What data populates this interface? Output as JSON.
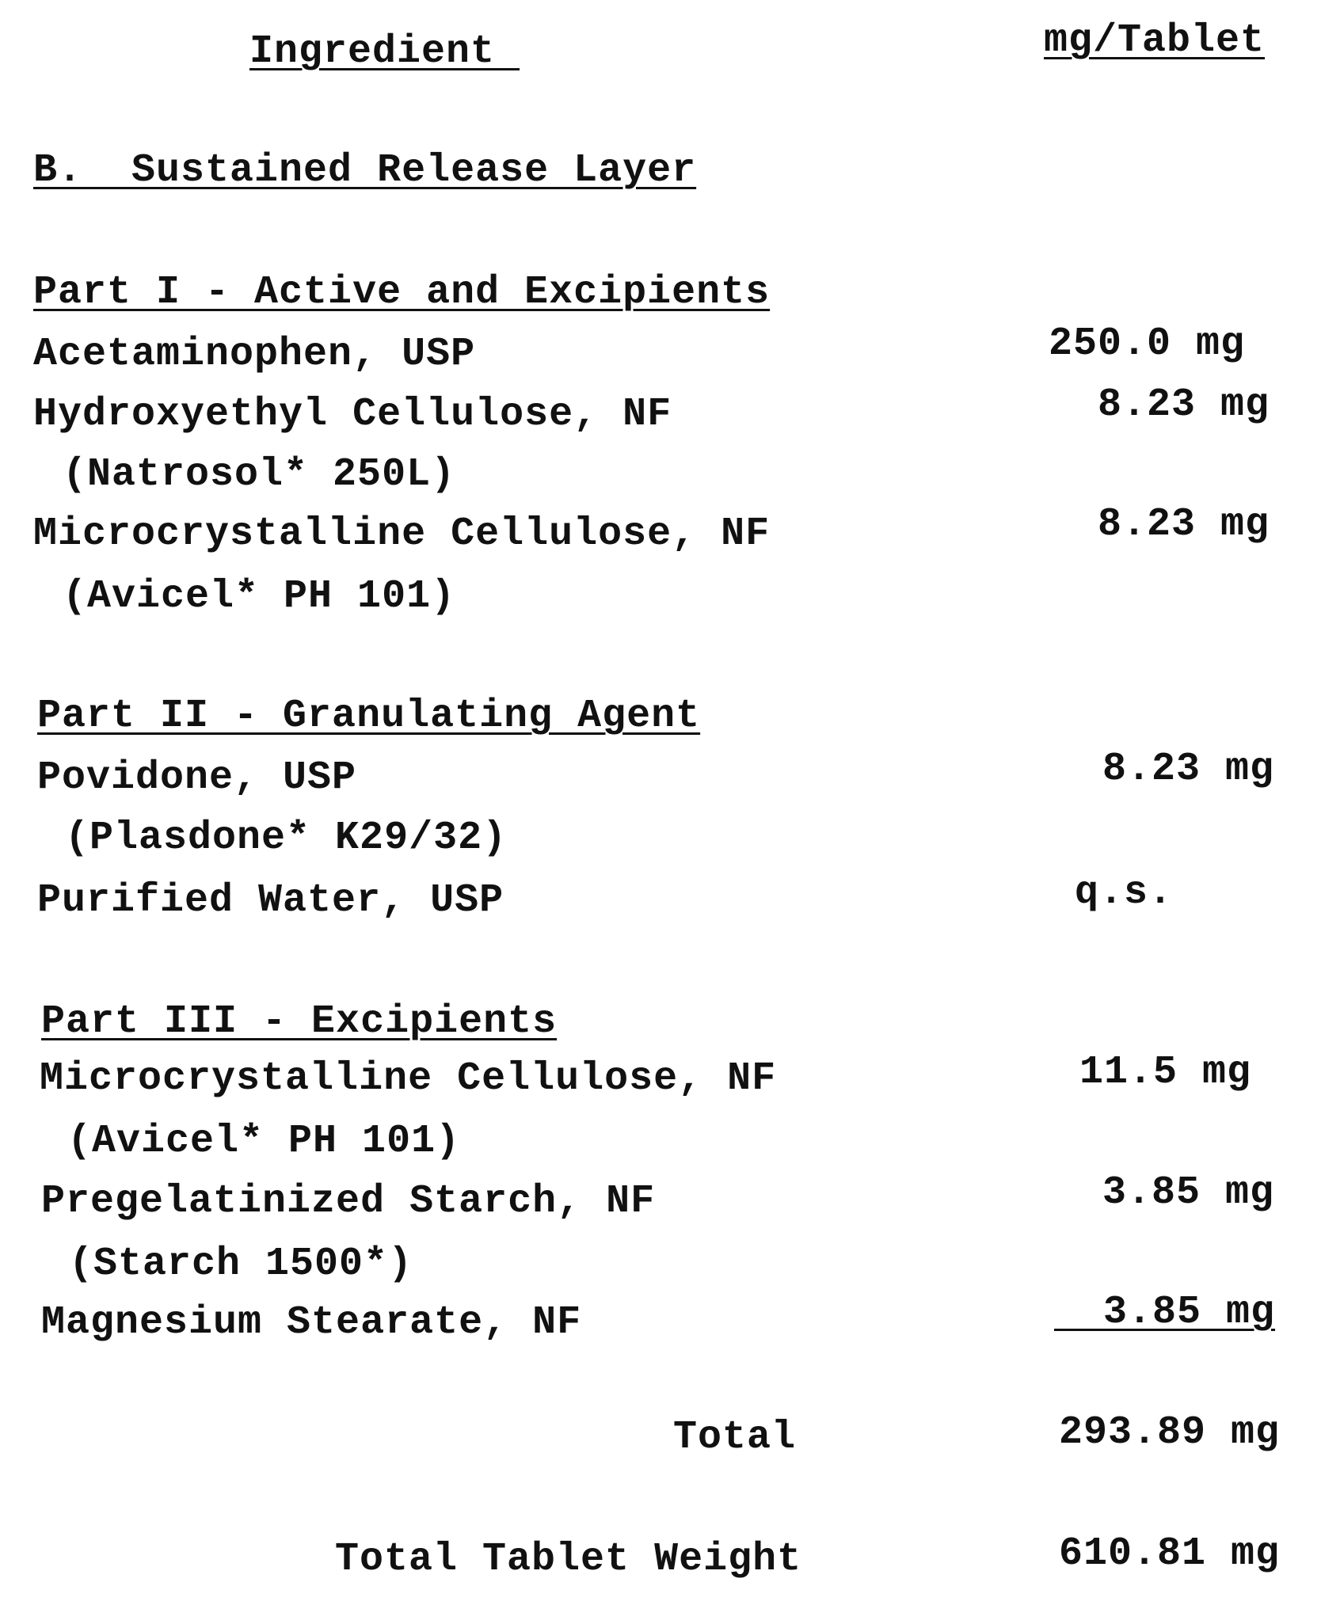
{
  "header": {
    "ingredient": "Ingredient ",
    "amount": "mg/Tablet"
  },
  "section_title": "B.  Sustained Release Layer",
  "parts": [
    {
      "title": "Part I - Active and Excipients",
      "items": [
        {
          "name": "Acetaminophen, USP",
          "amount": "250.0 mg"
        },
        {
          "name": "Hydroxyethyl Cellulose, NF",
          "sub": "(Natrosol* 250L)",
          "amount": "8.23 mg"
        },
        {
          "name": "Microcrystalline Cellulose, NF",
          "sub": "(Avicel* PH 101)",
          "amount": "8.23 mg"
        }
      ]
    },
    {
      "title": "Part II - Granulating Agent",
      "items": [
        {
          "name": "Povidone, USP",
          "sub": "(Plasdone* K29/32)",
          "amount": "8.23 mg"
        },
        {
          "name": "Purified Water, USP",
          "amount": "q.s."
        }
      ]
    },
    {
      "title": "Part III - Excipients",
      "items": [
        {
          "name": "Microcrystalline Cellulose, NF",
          "sub": "(Avicel* PH 101)",
          "amount": "11.5 mg"
        },
        {
          "name": "Pregelatinized Starch, NF",
          "sub": "(Starch 1500*)",
          "amount": "3.85 mg"
        },
        {
          "name": "Magnesium Stearate, NF",
          "amount": "  3.85 mg"
        }
      ]
    }
  ],
  "total": {
    "label": "Total",
    "value": "293.89 mg"
  },
  "total_tablet_weight": {
    "label": "Total Tablet Weight",
    "value": "610.81 mg"
  }
}
